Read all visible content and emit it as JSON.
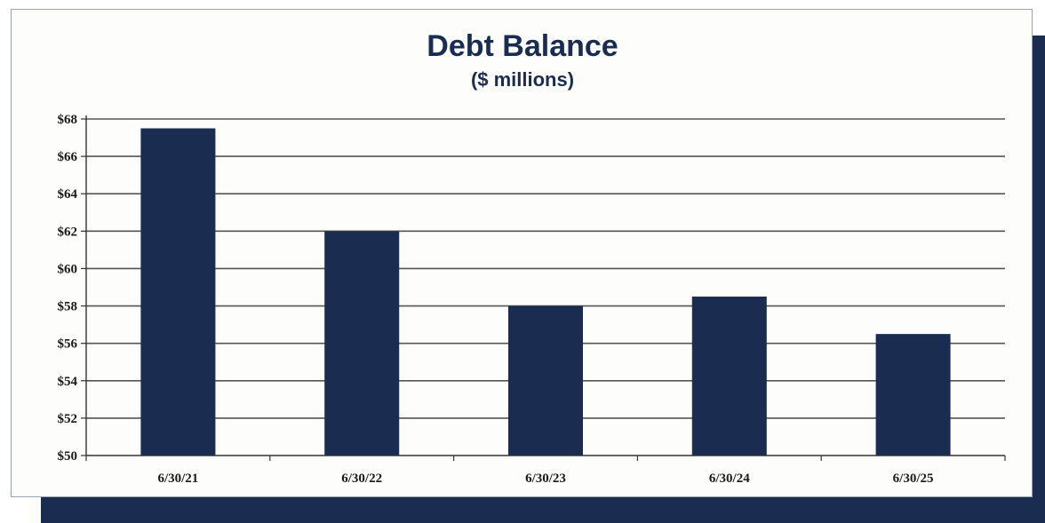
{
  "chart_data": {
    "type": "bar",
    "title": "Debt Balance",
    "subtitle": "($ millions)",
    "categories": [
      "6/30/21",
      "6/30/22",
      "6/30/23",
      "6/30/24",
      "6/30/25"
    ],
    "values": [
      67.5,
      62.0,
      58.0,
      58.5,
      56.5
    ],
    "ylim": [
      50,
      68
    ],
    "yticks": [
      "$50",
      "$52",
      "$54",
      "$56",
      "$58",
      "$60",
      "$62",
      "$64",
      "$66",
      "$68"
    ],
    "grid": true,
    "legend": "none"
  },
  "colors": {
    "bar": "#1a2d50",
    "grid": "#555555",
    "axis": "#333333",
    "shadow": "#1a2d50"
  }
}
